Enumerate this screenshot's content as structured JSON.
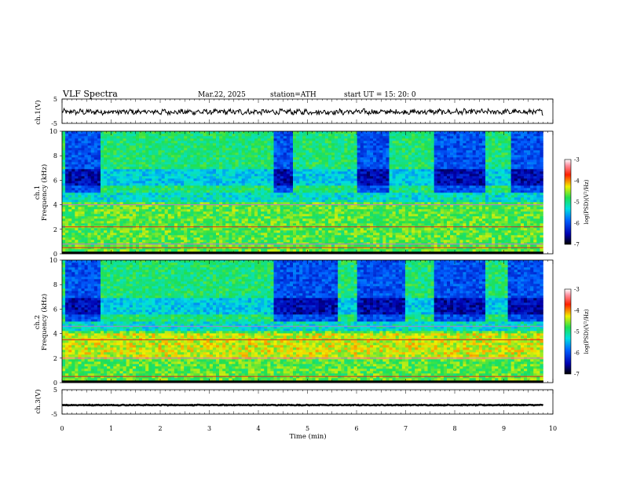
{
  "header": {
    "title": "VLF  Spectra",
    "date": "Mar.22, 2025",
    "station": "station=ATH",
    "start_ut": "start  UT  =    15: 20: 0"
  },
  "chart_data": [
    {
      "type": "line",
      "name_label": "ch.1(V)",
      "ylabel": "ch.1(V)",
      "ylim": [
        -5,
        5
      ],
      "yticks": [
        "5",
        "-5"
      ],
      "xlim": [
        0,
        10
      ],
      "x_end": 9.8,
      "baseline": -0.3,
      "amplitude": 1.0
    },
    {
      "type": "heatmap",
      "ylabel_top": "ch.1",
      "ylabel": "Frequency  (kHz)",
      "ylim": [
        0,
        10
      ],
      "yticks": [
        "0",
        "2",
        "4",
        "6",
        "8",
        "10"
      ],
      "xlim": [
        0,
        10
      ],
      "x_end": 9.8,
      "colorbar": {
        "label": "log(PSD)(V²/Hz)",
        "range": [
          -7,
          -3
        ],
        "ticks": [
          "-3",
          "-4",
          "-5",
          "-6",
          "-7"
        ]
      },
      "quiet_segments_min": [
        [
          0.05,
          0.8
        ],
        [
          4.3,
          4.7
        ],
        [
          6.0,
          6.65
        ],
        [
          7.6,
          8.6
        ],
        [
          9.15,
          9.8
        ]
      ],
      "lines_khz": [
        0.5,
        0.8,
        2.2,
        4.0
      ]
    },
    {
      "type": "heatmap",
      "ylabel_top": "ch.2",
      "ylabel": "Frequency  (kHz)",
      "ylim": [
        0,
        10
      ],
      "yticks": [
        "0",
        "2",
        "4",
        "6",
        "8",
        "10"
      ],
      "xlim": [
        0,
        10
      ],
      "x_end": 9.8,
      "colorbar": {
        "label": "log(PSD)(V²/Hz)",
        "range": [
          -7,
          -3
        ],
        "ticks": [
          "-3",
          "-4",
          "-5",
          "-6",
          "-7"
        ]
      },
      "quiet_segments_min": [
        [
          0.05,
          0.8
        ],
        [
          4.3,
          5.6
        ],
        [
          6.0,
          7.0
        ],
        [
          7.6,
          8.6
        ],
        [
          9.1,
          9.8
        ]
      ],
      "lines_khz": [
        0.5,
        2.0,
        3.5,
        4.6
      ]
    },
    {
      "type": "line",
      "name_label": "ch.3(V)",
      "ylabel": "ch.3(V)",
      "ylim": [
        -5,
        5
      ],
      "yticks": [
        "5",
        "-5"
      ],
      "xlim": [
        0,
        10
      ],
      "x_end": 9.8,
      "baseline": -1.3,
      "amplitude": 0.15
    }
  ],
  "xaxis": {
    "label": "Time  (min)",
    "ticks": [
      "0",
      "1",
      "2",
      "3",
      "4",
      "5",
      "6",
      "7",
      "8",
      "9",
      "10"
    ]
  }
}
